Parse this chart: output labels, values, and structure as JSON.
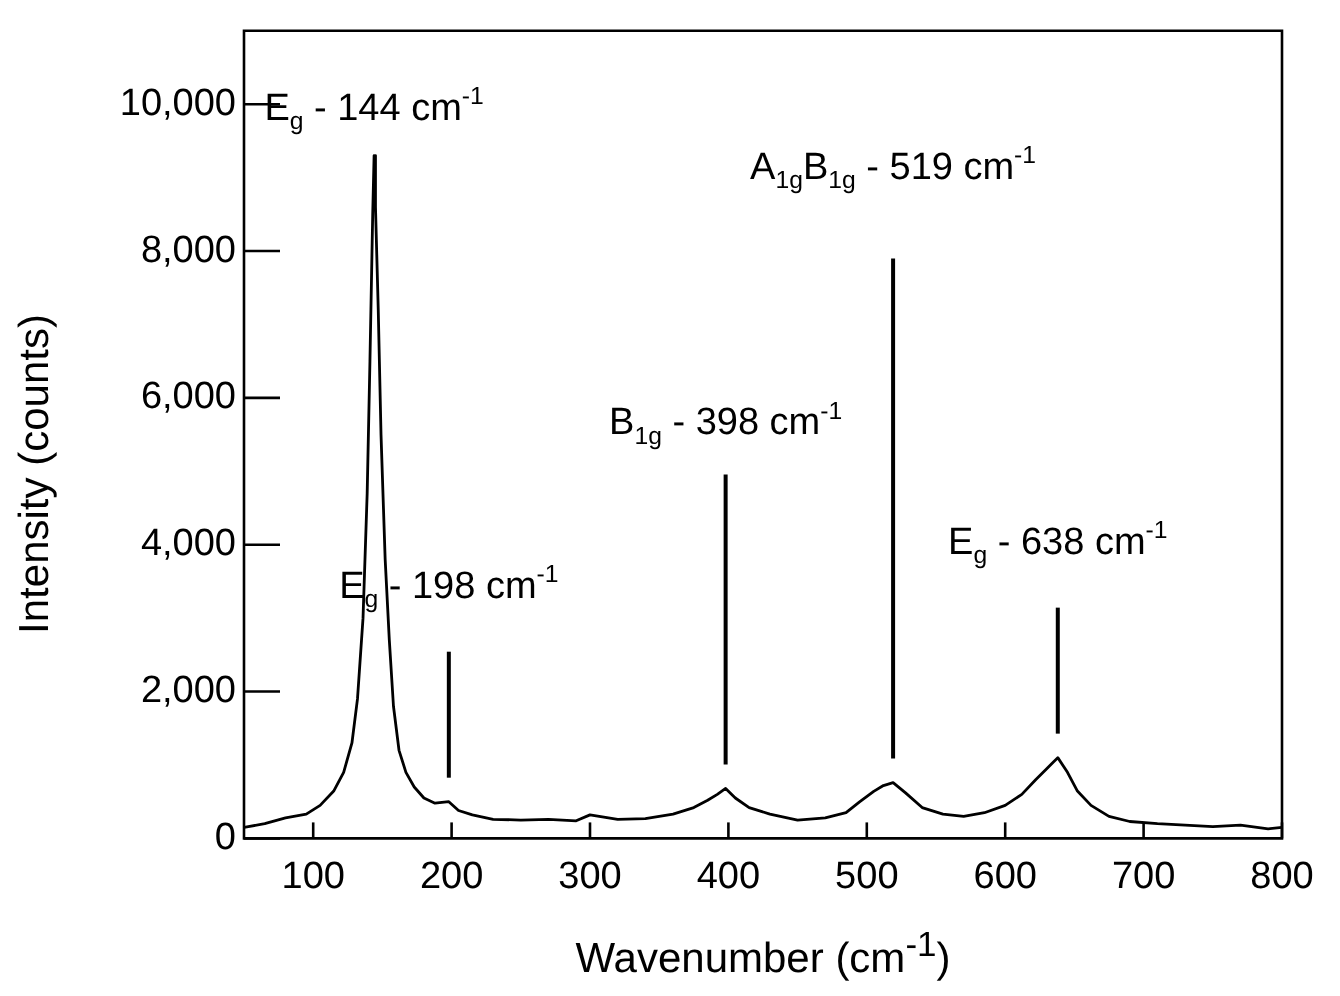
{
  "chart_data": {
    "type": "line",
    "xlabel": "Wavenumber (cm$^{-1}$)",
    "ylabel": "Intensity (counts)",
    "xlim": [
      50,
      800
    ],
    "xticks": [
      100,
      200,
      300,
      400,
      500,
      600,
      700,
      800
    ],
    "ylim": [
      0,
      11000
    ],
    "yticks": [
      0,
      {
        "value": 2000,
        "label": "2,000"
      },
      {
        "value": 4000,
        "label": "4,000"
      },
      {
        "value": 6000,
        "label": "6,000"
      },
      {
        "value": 8000,
        "label": "8,000"
      },
      {
        "value": 10000,
        "label": "10,000"
      }
    ],
    "grid": false,
    "legend": false,
    "marker": "none",
    "line_style": "solid",
    "series": [
      {
        "color": "#000000",
        "x": [
          50,
          65,
          80,
          95,
          105,
          115,
          122,
          128,
          132,
          136,
          139,
          141,
          143,
          144,
          145,
          147,
          149,
          152,
          155,
          158,
          162,
          167,
          173,
          180,
          188,
          198,
          205,
          215,
          230,
          250,
          270,
          290,
          300,
          320,
          340,
          360,
          375,
          385,
          392,
          398,
          405,
          415,
          430,
          450,
          470,
          485,
          495,
          505,
          512,
          519,
          528,
          540,
          555,
          570,
          585,
          600,
          612,
          622,
          630,
          638,
          645,
          652,
          662,
          675,
          690,
          710,
          730,
          750,
          770,
          790,
          800
        ],
        "values": [
          150,
          200,
          280,
          330,
          450,
          650,
          900,
          1300,
          1900,
          3000,
          4700,
          6500,
          8500,
          9300,
          8600,
          7200,
          5500,
          3800,
          2700,
          1800,
          1200,
          900,
          700,
          550,
          480,
          500,
          380,
          320,
          260,
          250,
          260,
          240,
          320,
          260,
          270,
          330,
          420,
          520,
          600,
          680,
          550,
          420,
          330,
          250,
          280,
          350,
          500,
          640,
          720,
          760,
          620,
          420,
          330,
          300,
          350,
          450,
          600,
          800,
          950,
          1100,
          900,
          650,
          450,
          300,
          230,
          200,
          180,
          160,
          180,
          130,
          150
        ]
      }
    ],
    "annotations": [
      {
        "text": "E$_{g}$ - 144 cm$^{-1}$",
        "x": 144,
        "y": 9300
      }
    ],
    "ref_lines": [
      {
        "axis": "x",
        "value": 198,
        "label": "E$_{g}$ - 198 cm$^{-1}$",
        "color": "#000000"
      },
      {
        "axis": "x",
        "value": 398,
        "label": "B$_{1g}$ - 398 cm$^{-1}$",
        "color": "#000000"
      },
      {
        "axis": "x",
        "value": 519,
        "label": "A$_{1g}$B$_{1g}$ - 519 cm$^{-1}$",
        "color": "#000000"
      },
      {
        "axis": "x",
        "value": 638,
        "label": "E$_{g}$ - 638 cm$^{-1}$",
        "color": "#000000"
      }
    ]
  }
}
